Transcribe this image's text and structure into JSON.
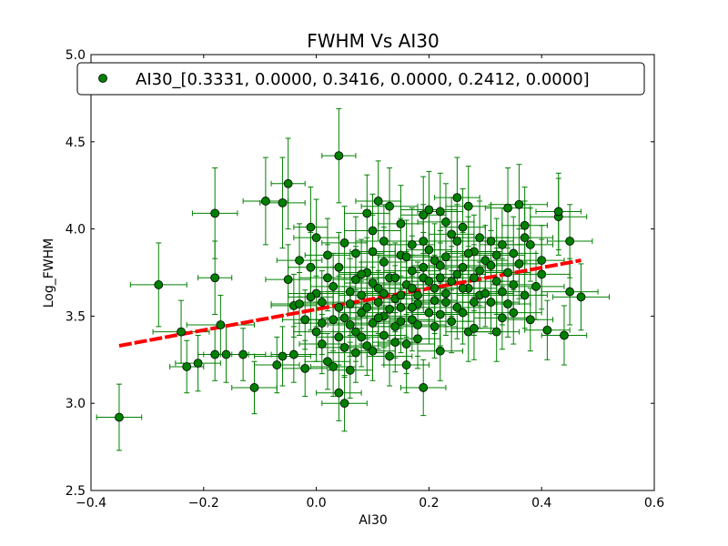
{
  "chart_data": {
    "type": "scatter",
    "title": "FWHM Vs AI30",
    "xlabel": "AI30",
    "ylabel": "Log_FWHM",
    "xlim": [
      -0.4,
      0.6
    ],
    "ylim": [
      2.5,
      5.0
    ],
    "xticks": [
      -0.4,
      -0.2,
      0.0,
      0.2,
      0.4,
      0.6
    ],
    "yticks": [
      2.5,
      3.0,
      3.5,
      4.0,
      4.5,
      5.0
    ],
    "xtick_labels": [
      "−0.4",
      "−0.2",
      "0.0",
      "0.2",
      "0.4",
      "0.6"
    ],
    "ytick_labels": [
      "2.5",
      "3.0",
      "3.5",
      "4.0",
      "4.5",
      "5.0"
    ],
    "grid": false,
    "legend_position": "top",
    "series": [
      {
        "name": "AI30_[0.3331, 0.0000, 0.3416, 0.0000, 0.2412, 0.0000]",
        "marker_color": "#008000",
        "errorbar_color": "#008000",
        "points": [
          [
            -0.35,
            2.92,
            0.04,
            0.19
          ],
          [
            -0.28,
            3.68,
            0.05,
            0.24
          ],
          [
            -0.24,
            3.41,
            0.05,
            0.18
          ],
          [
            -0.23,
            3.21,
            0.03,
            0.15
          ],
          [
            -0.21,
            3.23,
            0.04,
            0.16
          ],
          [
            -0.18,
            4.09,
            0.04,
            0.26
          ],
          [
            -0.18,
            3.72,
            0.03,
            0.21
          ],
          [
            -0.18,
            3.28,
            0.03,
            0.15
          ],
          [
            -0.17,
            3.45,
            0.06,
            0.17
          ],
          [
            -0.16,
            3.28,
            0.04,
            0.16
          ],
          [
            -0.13,
            3.28,
            0.04,
            0.15
          ],
          [
            -0.11,
            3.09,
            0.04,
            0.15
          ],
          [
            -0.09,
            4.16,
            0.04,
            0.25
          ],
          [
            -0.07,
            3.22,
            0.04,
            0.16
          ],
          [
            -0.06,
            3.27,
            0.05,
            0.17
          ],
          [
            -0.06,
            4.15,
            0.04,
            0.26
          ],
          [
            -0.05,
            4.26,
            0.03,
            0.26
          ],
          [
            -0.05,
            3.71,
            0.04,
            0.2
          ],
          [
            -0.04,
            3.56,
            0.04,
            0.18
          ],
          [
            -0.04,
            3.28,
            0.04,
            0.16
          ],
          [
            -0.03,
            3.82,
            0.04,
            0.21
          ],
          [
            -0.03,
            3.57,
            0.05,
            0.18
          ],
          [
            -0.02,
            3.48,
            0.04,
            0.17
          ],
          [
            -0.02,
            3.2,
            0.04,
            0.16
          ],
          [
            -0.01,
            4.01,
            0.03,
            0.23
          ],
          [
            -0.01,
            3.78,
            0.04,
            0.2
          ],
          [
            0.0,
            3.95,
            0.04,
            0.22
          ],
          [
            0.0,
            3.63,
            0.05,
            0.19
          ],
          [
            0.0,
            3.41,
            0.04,
            0.17
          ],
          [
            0.01,
            3.58,
            0.05,
            0.18
          ],
          [
            0.01,
            3.34,
            0.04,
            0.17
          ],
          [
            0.02,
            3.72,
            0.05,
            0.19
          ],
          [
            0.02,
            3.24,
            0.04,
            0.16
          ],
          [
            0.02,
            3.85,
            0.04,
            0.21
          ],
          [
            0.03,
            3.48,
            0.05,
            0.18
          ],
          [
            0.03,
            3.21,
            0.04,
            0.17
          ],
          [
            0.04,
            4.42,
            0.03,
            0.27
          ],
          [
            0.04,
            3.06,
            0.04,
            0.16
          ],
          [
            0.04,
            3.78,
            0.05,
            0.2
          ],
          [
            0.04,
            3.55,
            0.04,
            0.18
          ],
          [
            0.05,
            3.0,
            0.04,
            0.16
          ],
          [
            0.05,
            3.92,
            0.04,
            0.21
          ],
          [
            0.05,
            3.32,
            0.05,
            0.17
          ],
          [
            0.06,
            3.64,
            0.04,
            0.19
          ],
          [
            0.06,
            3.45,
            0.04,
            0.18
          ],
          [
            0.06,
            3.19,
            0.04,
            0.16
          ],
          [
            0.07,
            3.86,
            0.05,
            0.21
          ],
          [
            0.07,
            3.71,
            0.04,
            0.19
          ],
          [
            0.08,
            3.52,
            0.04,
            0.18
          ],
          [
            0.08,
            3.38,
            0.05,
            0.17
          ],
          [
            0.08,
            3.62,
            0.04,
            0.19
          ],
          [
            0.09,
            4.09,
            0.04,
            0.22
          ],
          [
            0.09,
            3.75,
            0.05,
            0.2
          ],
          [
            0.1,
            3.46,
            0.04,
            0.18
          ],
          [
            0.1,
            3.3,
            0.04,
            0.17
          ],
          [
            0.1,
            3.99,
            0.05,
            0.21
          ],
          [
            0.11,
            3.58,
            0.04,
            0.18
          ],
          [
            0.11,
            4.16,
            0.04,
            0.23
          ],
          [
            0.11,
            3.66,
            0.05,
            0.19
          ],
          [
            0.12,
            3.39,
            0.04,
            0.17
          ],
          [
            0.12,
            3.81,
            0.04,
            0.2
          ],
          [
            0.12,
            3.5,
            0.05,
            0.18
          ],
          [
            0.13,
            3.72,
            0.04,
            0.19
          ],
          [
            0.13,
            3.27,
            0.04,
            0.17
          ],
          [
            0.13,
            4.13,
            0.05,
            0.22
          ],
          [
            0.14,
            3.6,
            0.04,
            0.19
          ],
          [
            0.14,
            3.44,
            0.04,
            0.18
          ],
          [
            0.15,
            3.85,
            0.05,
            0.21
          ],
          [
            0.15,
            3.55,
            0.04,
            0.18
          ],
          [
            0.15,
            4.03,
            0.04,
            0.22
          ],
          [
            0.16,
            3.34,
            0.05,
            0.17
          ],
          [
            0.16,
            3.68,
            0.04,
            0.19
          ],
          [
            0.16,
            3.22,
            0.04,
            0.16
          ],
          [
            0.17,
            3.76,
            0.05,
            0.2
          ],
          [
            0.17,
            3.48,
            0.04,
            0.18
          ],
          [
            0.17,
            3.91,
            0.04,
            0.21
          ],
          [
            0.18,
            3.62,
            0.05,
            0.19
          ],
          [
            0.18,
            3.37,
            0.04,
            0.17
          ],
          [
            0.19,
            4.08,
            0.04,
            0.22
          ],
          [
            0.19,
            3.09,
            0.04,
            0.16
          ],
          [
            0.19,
            3.72,
            0.05,
            0.2
          ],
          [
            0.2,
            3.52,
            0.04,
            0.18
          ],
          [
            0.2,
            3.88,
            0.04,
            0.21
          ],
          [
            0.2,
            4.11,
            0.05,
            0.22
          ],
          [
            0.21,
            3.44,
            0.04,
            0.18
          ],
          [
            0.21,
            3.66,
            0.04,
            0.19
          ],
          [
            0.22,
            3.79,
            0.05,
            0.2
          ],
          [
            0.22,
            3.3,
            0.04,
            0.17
          ],
          [
            0.22,
            4.1,
            0.04,
            0.22
          ],
          [
            0.23,
            3.58,
            0.05,
            0.19
          ],
          [
            0.23,
            3.84,
            0.04,
            0.21
          ],
          [
            0.24,
            3.47,
            0.04,
            0.18
          ],
          [
            0.24,
            3.7,
            0.05,
            0.2
          ],
          [
            0.25,
            4.18,
            0.04,
            0.23
          ],
          [
            0.25,
            3.93,
            0.04,
            0.21
          ],
          [
            0.25,
            3.55,
            0.05,
            0.18
          ],
          [
            0.26,
            3.78,
            0.04,
            0.2
          ],
          [
            0.26,
            4.01,
            0.04,
            0.22
          ],
          [
            0.27,
            3.66,
            0.05,
            0.19
          ],
          [
            0.27,
            4.13,
            0.04,
            0.23
          ],
          [
            0.27,
            3.41,
            0.04,
            0.17
          ],
          [
            0.28,
            3.87,
            0.05,
            0.21
          ],
          [
            0.28,
            3.72,
            0.04,
            0.19
          ],
          [
            0.28,
            3.43,
            0.04,
            0.18
          ],
          [
            0.29,
            3.95,
            0.05,
            0.21
          ],
          [
            0.29,
            3.62,
            0.04,
            0.19
          ],
          [
            0.3,
            3.82,
            0.04,
            0.2
          ],
          [
            0.31,
            3.58,
            0.05,
            0.18
          ],
          [
            0.31,
            3.93,
            0.04,
            0.21
          ],
          [
            0.32,
            3.41,
            0.04,
            0.17
          ],
          [
            0.32,
            3.85,
            0.05,
            0.21
          ],
          [
            0.33,
            3.64,
            0.04,
            0.19
          ],
          [
            0.33,
            3.91,
            0.04,
            0.21
          ],
          [
            0.33,
            3.49,
            0.05,
            0.18
          ],
          [
            0.34,
            4.12,
            0.04,
            0.23
          ],
          [
            0.34,
            3.75,
            0.04,
            0.2
          ],
          [
            0.35,
            3.52,
            0.05,
            0.18
          ],
          [
            0.35,
            3.68,
            0.04,
            0.19
          ],
          [
            0.36,
            3.8,
            0.04,
            0.2
          ],
          [
            0.36,
            4.14,
            0.05,
            0.23
          ],
          [
            0.37,
            4.02,
            0.04,
            0.22
          ],
          [
            0.37,
            3.62,
            0.04,
            0.19
          ],
          [
            0.37,
            3.95,
            0.05,
            0.21
          ],
          [
            0.38,
            3.91,
            0.04,
            0.21
          ],
          [
            0.38,
            3.48,
            0.04,
            0.18
          ],
          [
            0.4,
            3.74,
            0.05,
            0.2
          ],
          [
            0.4,
            3.82,
            0.04,
            0.2
          ],
          [
            0.41,
            3.42,
            0.04,
            0.17
          ],
          [
            0.43,
            4.07,
            0.05,
            0.22
          ],
          [
            0.43,
            4.1,
            0.04,
            0.22
          ],
          [
            0.44,
            3.39,
            0.04,
            0.17
          ],
          [
            0.45,
            3.64,
            0.05,
            0.19
          ],
          [
            0.45,
            3.93,
            0.04,
            0.21
          ],
          [
            0.47,
            3.61,
            0.05,
            0.19
          ],
          [
            0.09,
            3.55,
            0.04,
            0.18
          ],
          [
            0.1,
            3.69,
            0.05,
            0.19
          ],
          [
            0.14,
            3.72,
            0.04,
            0.2
          ],
          [
            0.18,
            3.57,
            0.04,
            0.18
          ],
          [
            0.21,
            3.82,
            0.05,
            0.21
          ],
          [
            0.23,
            3.63,
            0.04,
            0.19
          ],
          [
            0.26,
            3.52,
            0.04,
            0.18
          ],
          [
            0.29,
            3.76,
            0.05,
            0.2
          ],
          [
            0.12,
            3.63,
            0.04,
            0.19
          ],
          [
            0.07,
            3.41,
            0.04,
            0.17
          ],
          [
            0.15,
            3.47,
            0.05,
            0.18
          ],
          [
            0.19,
            3.93,
            0.04,
            0.21
          ],
          [
            0.24,
            3.97,
            0.04,
            0.21
          ],
          [
            0.22,
            3.51,
            0.05,
            0.18
          ],
          [
            0.17,
            3.66,
            0.04,
            0.19
          ],
          [
            0.11,
            3.49,
            0.04,
            0.18
          ],
          [
            0.06,
            3.57,
            0.05,
            0.18
          ],
          [
            0.03,
            3.67,
            0.04,
            0.19
          ],
          [
            0.27,
            3.86,
            0.04,
            0.21
          ],
          [
            0.3,
            3.63,
            0.05,
            0.19
          ],
          [
            0.32,
            3.7,
            0.04,
            0.19
          ],
          [
            0.2,
            3.7,
            0.04,
            0.2
          ],
          [
            0.16,
            3.84,
            0.05,
            0.21
          ],
          [
            0.13,
            3.54,
            0.04,
            0.18
          ],
          [
            0.08,
            3.74,
            0.04,
            0.2
          ],
          [
            0.25,
            3.74,
            0.05,
            0.2
          ],
          [
            0.28,
            3.58,
            0.04,
            0.19
          ],
          [
            0.14,
            3.35,
            0.04,
            0.17
          ],
          [
            0.18,
            3.45,
            0.05,
            0.18
          ],
          [
            0.21,
            3.59,
            0.04,
            0.19
          ],
          [
            0.05,
            3.49,
            0.04,
            0.18
          ],
          [
            0.01,
            3.46,
            0.05,
            0.18
          ],
          [
            -0.01,
            3.61,
            0.04,
            0.19
          ],
          [
            0.35,
            3.86,
            0.04,
            0.21
          ],
          [
            0.39,
            3.67,
            0.05,
            0.19
          ],
          [
            0.34,
            3.57,
            0.04,
            0.19
          ],
          [
            0.1,
            3.87,
            0.04,
            0.21
          ],
          [
            0.23,
            4.04,
            0.05,
            0.22
          ],
          [
            0.19,
            3.78,
            0.04,
            0.2
          ],
          [
            0.15,
            3.62,
            0.04,
            0.19
          ],
          [
            0.12,
            3.93,
            0.05,
            0.21
          ],
          [
            0.09,
            3.33,
            0.04,
            0.17
          ],
          [
            0.26,
            3.66,
            0.04,
            0.19
          ],
          [
            0.31,
            3.79,
            0.05,
            0.2
          ],
          [
            0.22,
            3.72,
            0.04,
            0.2
          ],
          [
            0.17,
            3.55,
            0.04,
            0.18
          ],
          [
            0.07,
            3.29,
            0.05,
            0.17
          ],
          [
            0.04,
            3.38,
            0.04,
            0.17
          ]
        ]
      }
    ],
    "fit_line": {
      "color": "#ff0000",
      "x": [
        -0.35,
        0.47
      ],
      "y": [
        3.33,
        3.82
      ]
    }
  }
}
